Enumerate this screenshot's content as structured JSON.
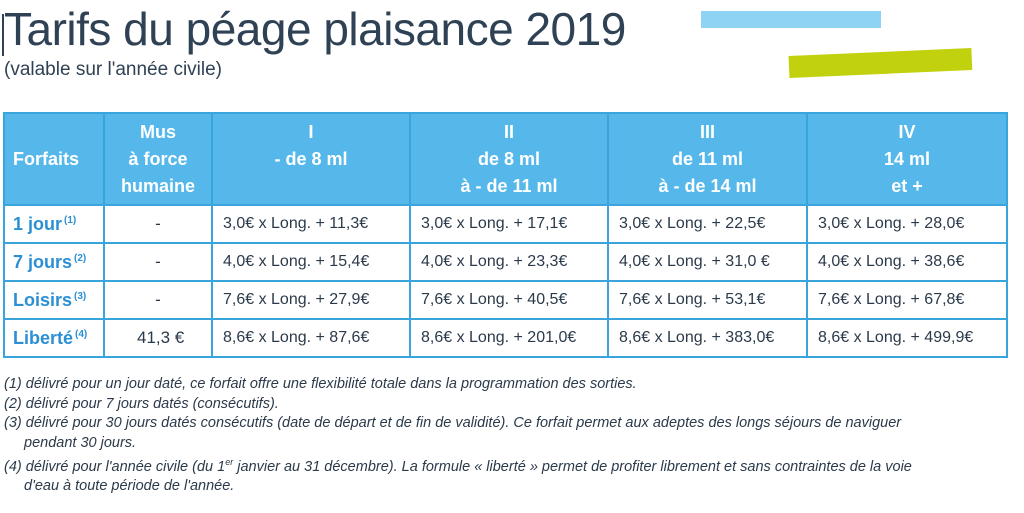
{
  "title": "Tarifs du péage plaisance 2019",
  "subtitle": "(valable sur l'année civile)",
  "colors": {
    "header_bg": "#56b8ea",
    "border": "#3aa5dc",
    "row_label": "#2b8fd4",
    "deco_blue": "#8fd3f4",
    "deco_green": "#c2d10e"
  },
  "table": {
    "headers": {
      "forfaits": "Forfaits",
      "mus_l1": "Mus",
      "mus_l2": "à force",
      "mus_l3": "humaine",
      "c1_l1": "I",
      "c1_l2": "- de 8 ml",
      "c2_l1": "II",
      "c2_l2": "de 8 ml",
      "c2_l3": "à - de 11 ml",
      "c3_l1": "III",
      "c3_l2": "de 11 ml",
      "c3_l3": "à - de 14 ml",
      "c4_l1": "IV",
      "c4_l2": "14 ml",
      "c4_l3": "et +"
    },
    "rows": [
      {
        "label": "1 jour",
        "note": "(1)",
        "mus": "-",
        "c1": "3,0€ x Long. + 11,3€",
        "c2": "3,0€ x Long. + 17,1€",
        "c3": "3,0€ x Long. + 22,5€",
        "c4": "3,0€ x Long. + 28,0€"
      },
      {
        "label": "7 jours",
        "note": "(2)",
        "mus": "-",
        "c1": "4,0€ x Long. + 15,4€",
        "c2": "4,0€ x Long. + 23,3€",
        "c3": "4,0€ x Long. + 31,0 €",
        "c4": "4,0€ x Long. + 38,6€"
      },
      {
        "label": "Loisirs",
        "note": "(3)",
        "mus": "-",
        "c1": "7,6€ x Long. + 27,9€",
        "c2": "7,6€ x Long. + 40,5€",
        "c3": "7,6€ x Long. + 53,1€",
        "c4": "7,6€ x Long. + 67,8€"
      },
      {
        "label": "Liberté",
        "note": "(4)",
        "mus": "41,3 €",
        "c1": "8,6€ x Long. + 87,6€",
        "c2": "8,6€ x Long. + 201,0€",
        "c3": "8,6€ x Long. + 383,0€",
        "c4": "8,6€ x Long. + 499,9€"
      }
    ]
  },
  "notes": {
    "n1": "(1) délivré pour un jour daté, ce forfait offre une flexibilité totale dans la programmation des sorties.",
    "n2": "(2) délivré pour 7 jours datés (consécutifs).",
    "n3_l1": "(3) délivré pour 30 jours datés consécutifs (date de départ et de fin de validité). Ce forfait permet aux adeptes des longs séjours de naviguer",
    "n3_l2": "pendant 30 jours.",
    "n4_a": "(4) délivré pour l'année civile (du 1",
    "n4_sup": "er",
    "n4_b": " janvier au 31 décembre). La formule « liberté » permet de profiter librement et sans contraintes de la voie",
    "n4_l2": "d'eau à toute période de l'année."
  }
}
